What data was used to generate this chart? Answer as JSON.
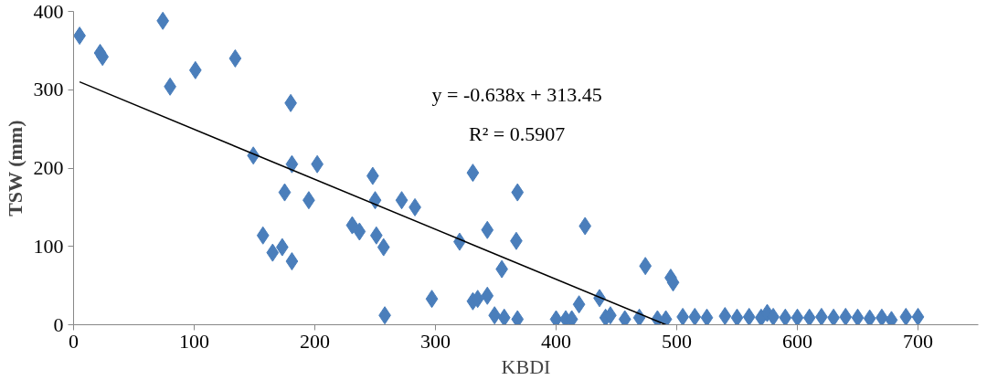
{
  "chart_data": {
    "type": "scatter",
    "xlabel": "KBDI",
    "ylabel": "TSW (mm)",
    "xlim": [
      0,
      750
    ],
    "ylim": [
      0,
      400
    ],
    "xticks": [
      0,
      100,
      200,
      300,
      400,
      500,
      600,
      700
    ],
    "yticks": [
      0,
      100,
      200,
      300,
      400
    ],
    "grid": false,
    "annotations": [
      "y = -0.638x + 313.45",
      "R² = 0.5907"
    ],
    "series": [
      {
        "marker": "diamond",
        "color": "#4a7ebb",
        "x": [
          5,
          22,
          24,
          74,
          80,
          101,
          134,
          180,
          149,
          181,
          202,
          157,
          165,
          173,
          181,
          175,
          195,
          231,
          237,
          248,
          250,
          251,
          257,
          258,
          272,
          283,
          297,
          320,
          331,
          343,
          368,
          355,
          367,
          331,
          335,
          343,
          349,
          357,
          368,
          400,
          408,
          413,
          419,
          424,
          436,
          441,
          445,
          457,
          469,
          474,
          484,
          491,
          495,
          497,
          505,
          515,
          525,
          540,
          550,
          560,
          570,
          575,
          580,
          590,
          600,
          610,
          620,
          630,
          640,
          650,
          660,
          670,
          678,
          690,
          700
        ],
        "values": [
          369,
          347,
          342,
          388,
          304,
          325,
          340,
          283,
          216,
          205,
          205,
          114,
          92,
          99,
          81,
          169,
          159,
          127,
          119,
          190,
          159,
          114,
          99,
          12,
          159,
          150,
          33,
          106,
          194,
          121,
          169,
          71,
          107,
          30,
          33,
          37,
          12,
          9,
          7,
          7,
          7,
          7,
          26,
          126,
          34,
          9,
          12,
          7,
          9,
          75,
          7,
          7,
          60,
          54,
          10,
          10,
          9,
          11,
          9,
          10,
          9,
          15,
          10,
          9,
          9,
          9,
          10,
          9,
          10,
          9,
          8,
          9,
          6,
          10,
          10
        ]
      },
      {
        "type": "line",
        "color": "#000000",
        "x": [
          5,
          491
        ],
        "values": [
          310,
          0
        ]
      }
    ]
  }
}
